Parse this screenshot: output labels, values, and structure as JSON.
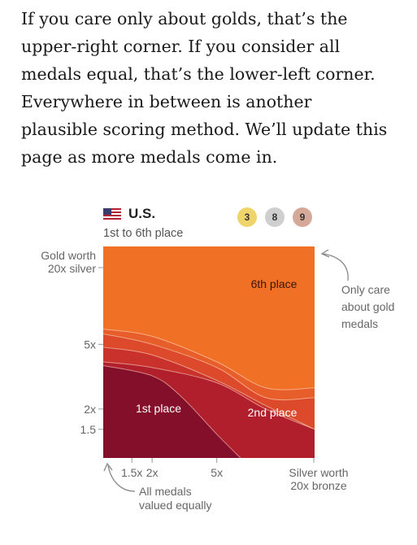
{
  "intro": {
    "lines": [
      "If you care only about golds, that’s the",
      "upper-right corner. If you consider all",
      "medals equal, that’s the lower-left corner.",
      "Everywhere in between is another",
      "plausible scoring method. We’ll update this",
      "page as more medals come in."
    ]
  },
  "header": {
    "country": "U.S.",
    "subtitle": "1st to 6th place",
    "flag_icon": "us-flag-icon",
    "medals": {
      "gold": "3",
      "silver": "8",
      "bronze": "9",
      "colors": {
        "gold": "#efd46b",
        "silver": "#cfcfcf",
        "bronze": "#d6a898"
      }
    }
  },
  "chart_data": {
    "type": "heatmap",
    "title": "",
    "x_axis": {
      "label_lines": [
        "Silver worth",
        "20x bronze"
      ],
      "scale": "log",
      "range": [
        1,
        20
      ],
      "ticks": [
        {
          "value": 1.5,
          "label": "1.5x"
        },
        {
          "value": 2,
          "label": "2x"
        },
        {
          "value": 5,
          "label": "5x"
        }
      ]
    },
    "y_axis": {
      "label_lines": [
        "Gold worth",
        "20x silver"
      ],
      "scale": "log",
      "range": [
        1,
        20
      ],
      "ticks": [
        {
          "value": 1.5,
          "label": "1.5"
        },
        {
          "value": 2,
          "label": "2x"
        },
        {
          "value": 5,
          "label": "5x"
        }
      ]
    },
    "regions": [
      {
        "label": "6th place",
        "rank": 6,
        "color": "#f07025"
      },
      {
        "label": "",
        "rank": 5,
        "color": "#e85e2a"
      },
      {
        "label": "",
        "rank": 4,
        "color": "#dc4a2b"
      },
      {
        "label": "",
        "rank": 3,
        "color": "#c9322c"
      },
      {
        "label": "2nd place",
        "rank": 2,
        "color": "#b11f2d"
      },
      {
        "label": "1st place",
        "rank": 1,
        "color": "#840f2a"
      }
    ],
    "boundaries": [
      {
        "between": "6-5",
        "points": [
          [
            1,
            6.2
          ],
          [
            2,
            5.6
          ],
          [
            5,
            3.9
          ],
          [
            10,
            2.7
          ],
          [
            20,
            2.7
          ]
        ]
      },
      {
        "between": "5-4",
        "points": [
          [
            1,
            5.8
          ],
          [
            2,
            5.0
          ],
          [
            5,
            3.6
          ],
          [
            10,
            2.35
          ],
          [
            20,
            2.35
          ]
        ]
      },
      {
        "between": "4-3",
        "points": [
          [
            1,
            4.8
          ],
          [
            2,
            4.3
          ],
          [
            5,
            3.0
          ],
          [
            10,
            2.1
          ],
          [
            20,
            1.5
          ]
        ]
      },
      {
        "between": "3-2",
        "points": [
          [
            1,
            3.9
          ],
          [
            2,
            3.6
          ],
          [
            5,
            2.9
          ],
          [
            10,
            2.0
          ],
          [
            20,
            1.5
          ]
        ]
      },
      {
        "between": "2-1",
        "points": [
          [
            1,
            3.7
          ],
          [
            2,
            3.2
          ],
          [
            3,
            2.4
          ],
          [
            5,
            1.4
          ],
          [
            7,
            1
          ]
        ]
      }
    ],
    "annotations": [
      {
        "id": "gold",
        "lines": [
          "Only care",
          "about gold",
          "medals"
        ]
      },
      {
        "id": "equal",
        "lines": [
          "All medals",
          "valued equally"
        ]
      }
    ]
  }
}
